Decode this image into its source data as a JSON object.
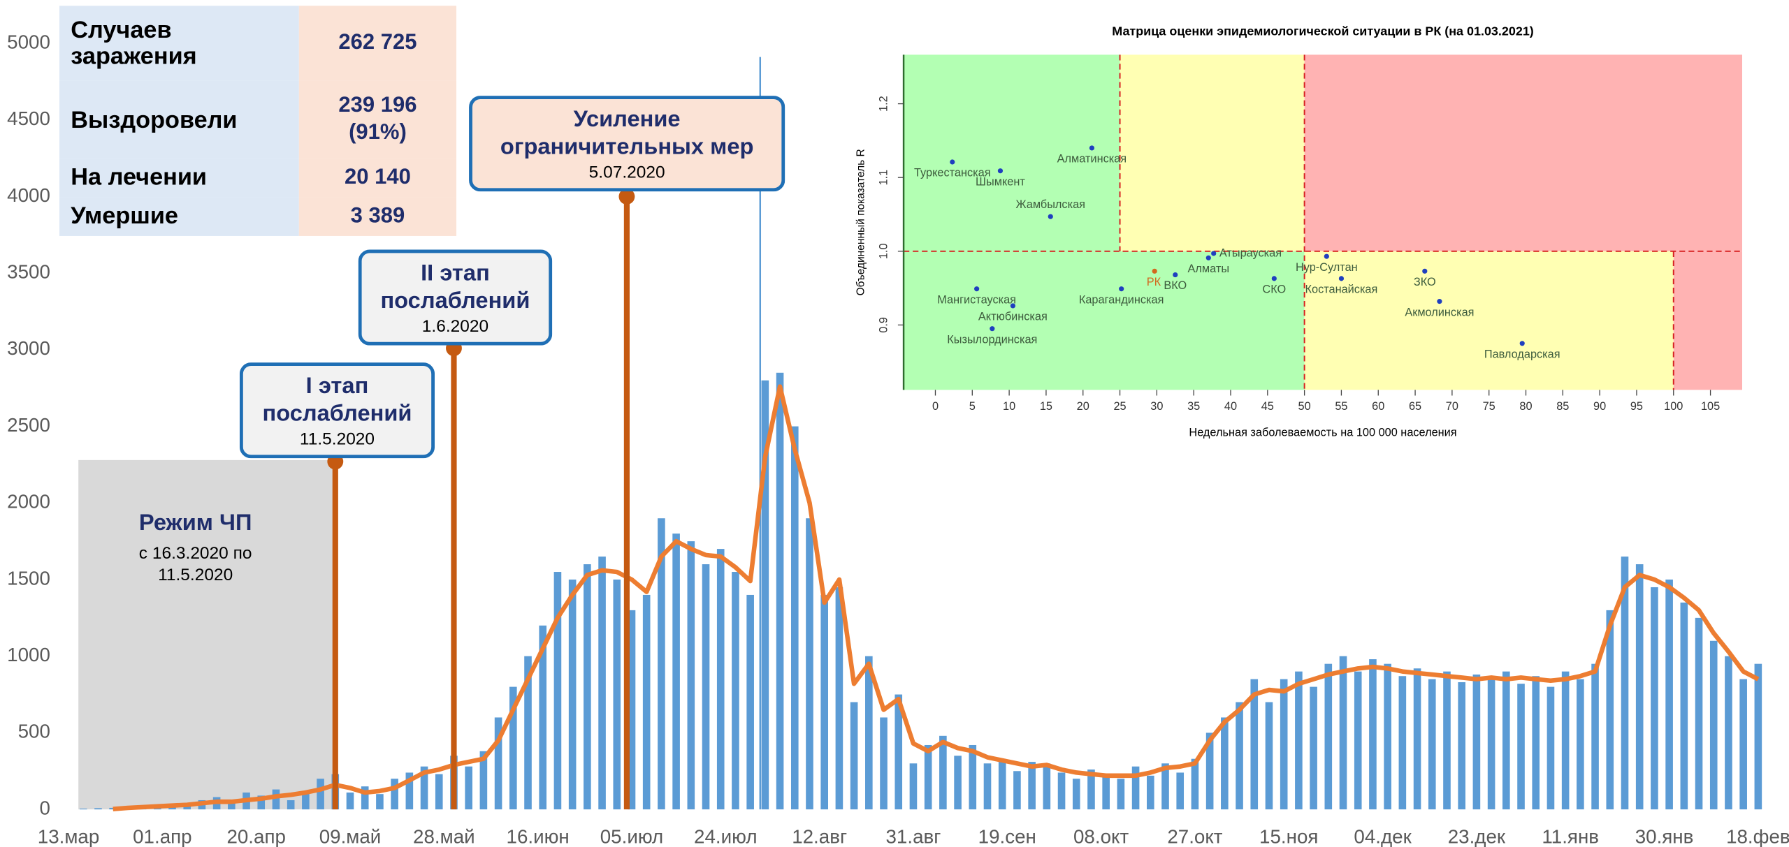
{
  "table": {
    "rows": [
      [
        "Случаев заражения",
        "262 725"
      ],
      [
        "Выздоровели",
        "239 196 (91%)"
      ],
      [
        "На лечении",
        "20 140"
      ],
      [
        "Умершие",
        "3 389"
      ]
    ]
  },
  "chart_data": [
    {
      "type": "combo",
      "x": [
        3,
        6,
        9,
        12,
        15,
        18,
        21,
        24,
        27,
        30,
        33,
        36,
        39,
        42,
        45,
        48,
        51,
        54,
        57,
        60,
        63,
        66,
        69,
        72,
        75,
        78,
        81,
        84,
        87,
        90,
        93,
        96,
        99,
        102,
        105,
        108,
        111,
        114,
        117,
        120,
        123,
        126,
        129,
        132,
        135,
        138,
        141,
        144,
        147,
        150,
        153,
        156,
        159,
        162,
        165,
        168,
        171,
        174,
        177,
        180,
        183,
        186,
        189,
        192,
        195,
        198,
        201,
        204,
        207,
        210,
        213,
        216,
        219,
        222,
        225,
        228,
        231,
        234,
        237,
        240,
        243,
        246,
        249,
        252,
        255,
        258,
        261,
        264,
        267,
        270,
        273,
        276,
        279,
        282,
        285,
        288,
        291,
        294,
        297,
        300,
        303,
        306,
        309,
        312,
        315,
        318,
        321,
        324,
        327,
        330,
        333,
        336,
        339,
        342
      ],
      "series": [
        {
          "kind": "bar",
          "color": "#5b9bd5",
          "values": [
            5,
            8,
            10,
            20,
            25,
            30,
            35,
            40,
            60,
            80,
            40,
            110,
            90,
            130,
            60,
            120,
            200,
            230,
            110,
            150,
            100,
            200,
            240,
            280,
            230,
            350,
            280,
            380,
            600,
            800,
            1000,
            1200,
            1550,
            1500,
            1600,
            1650,
            1500,
            1300,
            1400,
            1900,
            1800,
            1750,
            1600,
            1700,
            1550,
            1400,
            2800,
            2850,
            2500,
            1900,
            1400,
            1450,
            700,
            1000,
            600,
            750,
            300,
            420,
            480,
            350,
            420,
            300,
            330,
            250,
            310,
            300,
            240,
            200,
            260,
            230,
            200,
            280,
            220,
            300,
            240,
            330,
            500,
            600,
            700,
            850,
            700,
            850,
            900,
            800,
            950,
            1000,
            900,
            980,
            950,
            870,
            920,
            850,
            900,
            830,
            880,
            850,
            900,
            820,
            870,
            800,
            900,
            850,
            950,
            1300,
            1650,
            1600,
            1450,
            1500,
            1350,
            1250,
            1100,
            1000,
            850,
            950
          ]
        },
        {
          "kind": "line",
          "color": "#ed7d31",
          "values": [
            null,
            null,
            2,
            10,
            15,
            20,
            25,
            30,
            40,
            50,
            50,
            60,
            70,
            85,
            95,
            110,
            130,
            160,
            140,
            110,
            120,
            140,
            190,
            240,
            260,
            290,
            310,
            330,
            450,
            650,
            850,
            1050,
            1250,
            1400,
            1530,
            1560,
            1550,
            1500,
            1420,
            1650,
            1750,
            1700,
            1660,
            1650,
            1580,
            1490,
            2300,
            2760,
            2350,
            2000,
            1350,
            1500,
            820,
            950,
            650,
            720,
            430,
            380,
            440,
            400,
            380,
            340,
            320,
            300,
            280,
            290,
            260,
            240,
            230,
            220,
            220,
            220,
            240,
            270,
            280,
            300,
            450,
            570,
            650,
            750,
            780,
            770,
            820,
            850,
            880,
            900,
            920,
            930,
            920,
            900,
            890,
            880,
            870,
            860,
            850,
            860,
            850,
            860,
            850,
            840,
            850,
            870,
            900,
            1200,
            1450,
            1530,
            1500,
            1450,
            1380,
            1300,
            1150,
            1030,
            900,
            850
          ]
        }
      ],
      "xlim": [
        -1.85,
        345
      ],
      "xticks": [
        {
          "value": 0,
          "label": "13.мар"
        },
        {
          "value": 19,
          "label": "01.апр"
        },
        {
          "value": 38,
          "label": "20.апр"
        },
        {
          "value": 57,
          "label": "09.май"
        },
        {
          "value": 76,
          "label": "28.май"
        },
        {
          "value": 95,
          "label": "16.июн"
        },
        {
          "value": 114,
          "label": "05.июл"
        },
        {
          "value": 133,
          "label": "24.июл"
        },
        {
          "value": 152,
          "label": "12.авг"
        },
        {
          "value": 171,
          "label": "31.авг"
        },
        {
          "value": 190,
          "label": "19.сен"
        },
        {
          "value": 209,
          "label": "08.окт"
        },
        {
          "value": 228,
          "label": "27.окт"
        },
        {
          "value": 247,
          "label": "15.ноя"
        },
        {
          "value": 266,
          "label": "04.дек"
        },
        {
          "value": 285,
          "label": "23.дек"
        },
        {
          "value": 304,
          "label": "11.янв"
        },
        {
          "value": 323,
          "label": "30.янв"
        },
        {
          "value": 342,
          "label": "18.фев"
        }
      ],
      "ylim": [
        0,
        5000
      ],
      "yticks": [
        0,
        500,
        1000,
        1500,
        2000,
        2500,
        3000,
        3500,
        4000,
        4500,
        5000
      ],
      "vline": 140,
      "vline_color": "#5b9bd5",
      "region": {
        "title": "Режим ЧП",
        "text": "с 16.3.2020 по 11.5.2020",
        "x": [
          2,
          54
        ],
        "y": 2280,
        "color": "#d9d9d9"
      },
      "event_color": "#c55a11",
      "events": [
        {
          "title": "I  этап послаблений",
          "date": "11.5.2020",
          "x": 54,
          "y": 2270,
          "fill": "#f2f2f2"
        },
        {
          "title": "II  этап послаблений",
          "date": "1.6.2020",
          "x": 78,
          "y": 3010,
          "fill": "#f2f2f2"
        },
        {
          "title": "Усиление ограничительных мер",
          "date": "5.07.2020",
          "x": 113,
          "y": 4000,
          "fill": "#fbe3d6"
        }
      ]
    },
    {
      "type": "scatter",
      "title": "Матрица оценки эпидемиологической ситуации в РК (на 01.03.2021)",
      "xlabel": "Недельная заболеваемость на 100 000 населения",
      "ylabel": "Объединенный показатель R",
      "xlim": [
        -4.3,
        109.3
      ],
      "ylim": [
        0.812,
        1.2665
      ],
      "xticks": [
        0,
        5,
        10,
        15,
        20,
        25,
        30,
        35,
        40,
        45,
        50,
        55,
        60,
        65,
        70,
        75,
        80,
        85,
        90,
        95,
        100,
        105
      ],
      "yticks": [
        0.9,
        {
          "value": 1,
          "label": "1.0"
        },
        1.1,
        1.2
      ],
      "thresholds": {
        "x": [
          25,
          50,
          100
        ],
        "y": 1
      },
      "zone_colors": {
        "green": "#b3ffb3",
        "yellow": "#ffffb3",
        "red": "#ffb3b3"
      },
      "labels": [
        "Туркестанская",
        "Шымкент",
        "Алматинская",
        "Жамбылская",
        "Атырауская",
        "Алматы",
        "Нур-Султан",
        "РК",
        "ВКО",
        "СКО",
        "Костанайская",
        "ЗКО",
        "Мангистауская",
        "Карагандинская",
        "Актюбинская",
        "Акмолинская",
        "Кызылординская",
        "Павлодарская"
      ],
      "x": [
        2.3,
        8.8,
        21.2,
        15.6,
        37.7,
        37.0,
        53.0,
        29.7,
        32.5,
        45.9,
        55.0,
        66.3,
        5.6,
        25.2,
        10.5,
        68.3,
        7.7,
        79.5
      ],
      "y": [
        1.121,
        1.109,
        1.14,
        1.047,
        0.997,
        0.991,
        0.993,
        0.973,
        0.968,
        0.963,
        0.963,
        0.973,
        0.949,
        0.949,
        0.926,
        0.932,
        0.895,
        0.875
      ],
      "colors": [
        "#1f3fbf",
        "#1f3fbf",
        "#1f3fbf",
        "#1f3fbf",
        "#1f3fbf",
        "#1f3fbf",
        "#1f3fbf",
        "#d2691e",
        "#1f3fbf",
        "#1f3fbf",
        "#1f3fbf",
        "#1f3fbf",
        "#1f3fbf",
        "#1f3fbf",
        "#1f3fbf",
        "#1f3fbf",
        "#1f3fbf",
        "#1f3fbf"
      ],
      "label_colors": [
        "#3d5c3d",
        "#3d5c3d",
        "#3d5c3d",
        "#3d5c3d",
        "#3d5c3d",
        "#3d5c3d",
        "#3d5c3d",
        "#d2691e",
        "#3d5c3d",
        "#3d5c3d",
        "#3d5c3d",
        "#3d5c3d",
        "#3d5c3d",
        "#3d5c3d",
        "#3d5c3d",
        "#3d5c3d",
        "#3d5c3d",
        "#3d5c3d"
      ]
    }
  ]
}
